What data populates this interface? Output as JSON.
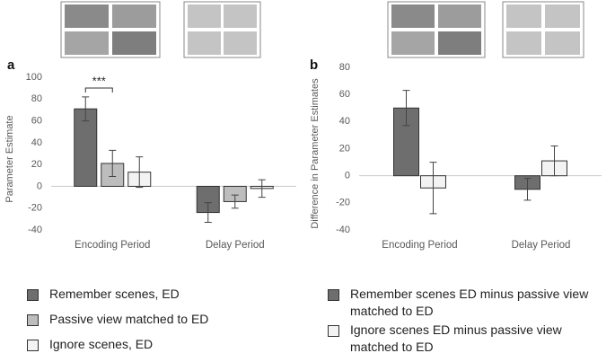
{
  "chart_data": [
    {
      "type": "bar",
      "panel_label": "a",
      "ylabel": "Parameter Estimate",
      "annotation": "***",
      "categories": [
        "Encoding Period",
        "Delay Period"
      ],
      "ylim": [
        -40,
        100
      ],
      "yticks": [
        -40,
        -20,
        0,
        20,
        40,
        60,
        80,
        100
      ],
      "series": [
        {
          "name": "Remember scenes, ED",
          "color": "#6e6e6e",
          "values": [
            71,
            -24
          ],
          "errors": [
            11,
            9
          ]
        },
        {
          "name": "Passive view matched to ED",
          "color": "#bdbdbd",
          "values": [
            21,
            -14
          ],
          "errors": [
            12,
            6
          ]
        },
        {
          "name": "Ignore scenes, ED",
          "color": "#f3f3f3",
          "values": [
            13,
            -2
          ],
          "errors": [
            14,
            8
          ]
        }
      ]
    },
    {
      "type": "bar",
      "panel_label": "b",
      "ylabel": "Difference in Parameter Estimates",
      "categories": [
        "Encoding Period",
        "Delay Period"
      ],
      "ylim": [
        -40,
        80
      ],
      "yticks": [
        -40,
        -20,
        0,
        20,
        40,
        60,
        80
      ],
      "series": [
        {
          "name": "Remember scenes ED minus passive view matched to ED",
          "color": "#6e6e6e",
          "values": [
            50,
            -10
          ],
          "errors": [
            13,
            8
          ]
        },
        {
          "name": "Ignore scenes ED minus passive view matched to ED",
          "color": "#f3f3f3",
          "values": [
            -9,
            11
          ],
          "errors": [
            19,
            11
          ]
        }
      ]
    }
  ]
}
